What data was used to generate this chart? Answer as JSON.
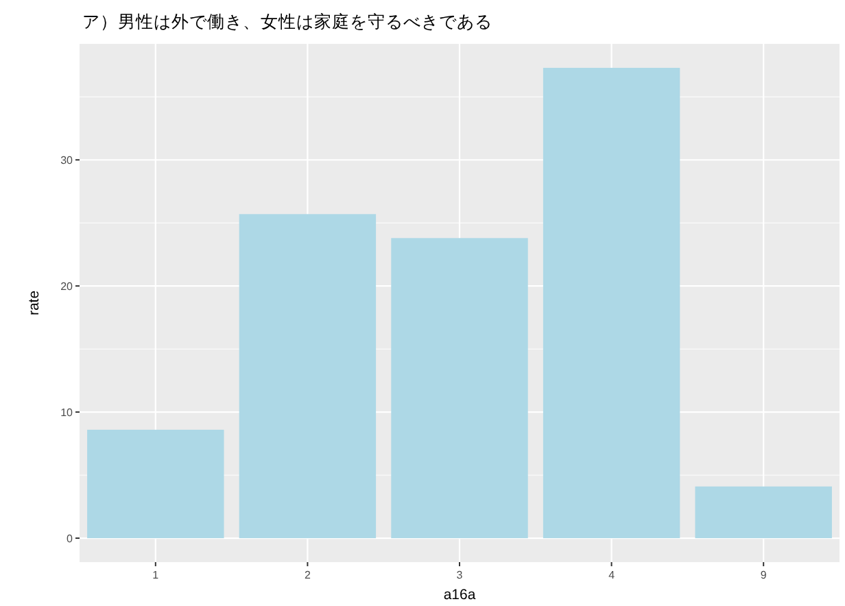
{
  "chart_data": {
    "type": "bar",
    "title": "ア）男性は外で働き、女性は家庭を守るべきである",
    "xlabel": "a16a",
    "ylabel": "rate",
    "categories": [
      "1",
      "2",
      "3",
      "4",
      "9"
    ],
    "values": [
      8.6,
      25.7,
      23.8,
      37.3,
      4.1
    ],
    "color": "#add8e6",
    "ylim": [
      -1.9,
      39.2
    ],
    "yticks": [
      0,
      10,
      20,
      30
    ],
    "grid": true
  }
}
